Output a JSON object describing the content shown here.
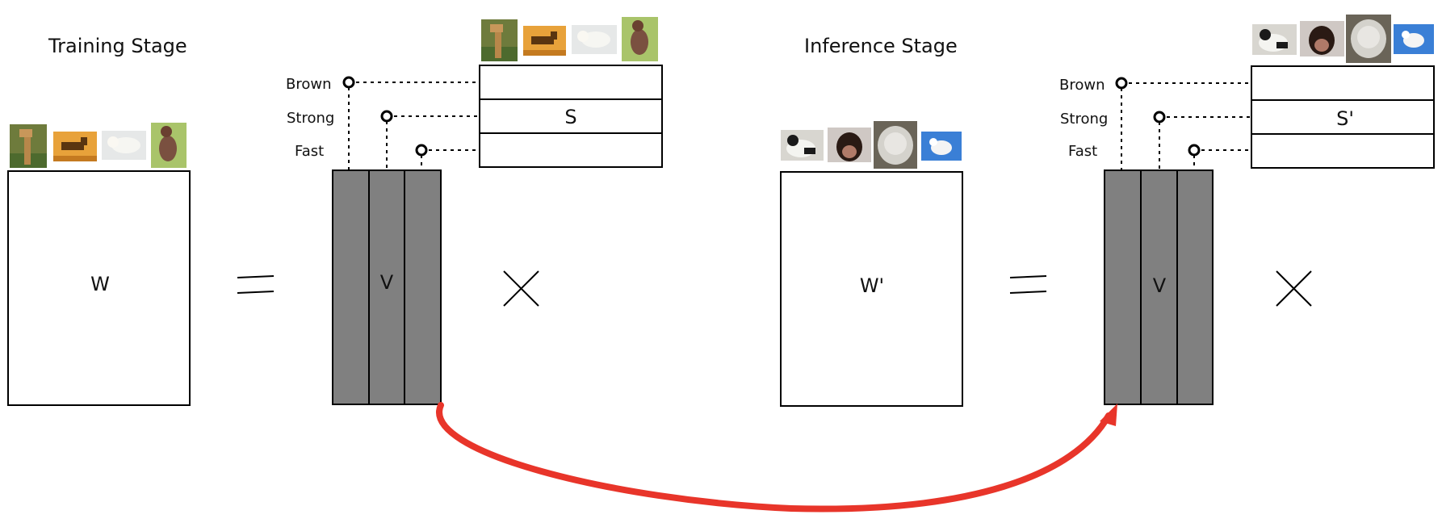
{
  "colors": {
    "v_column": "#808080",
    "transfer_arrow": "#e8352a",
    "outline": "#000000"
  },
  "training": {
    "title": "Training Stage",
    "w_label": "W",
    "v_label": "V",
    "s_label": "S",
    "attributes": [
      "Brown",
      "Strong",
      "Fast"
    ],
    "thumbnails": [
      "giraffe",
      "horse",
      "polar-bear",
      "kangaroo"
    ]
  },
  "inference": {
    "title": "Inference Stage",
    "w_label": "W'",
    "v_label": "V",
    "s_label": "S'",
    "attributes": [
      "Brown",
      "Strong",
      "Fast"
    ],
    "thumbnails": [
      "panda",
      "chimpanzee",
      "persian-cat",
      "rat"
    ]
  },
  "operators": {
    "equals": "equals-sign",
    "times": "multiply-sign"
  }
}
